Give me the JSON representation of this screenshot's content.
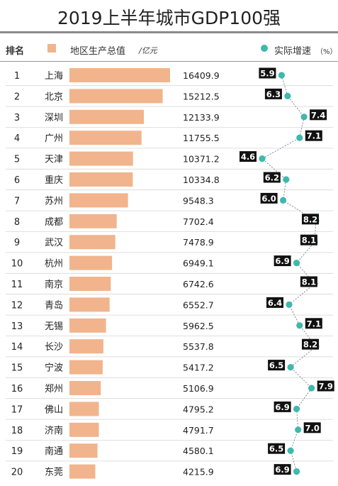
{
  "chart_data": {
    "type": "bar",
    "title": "2019上半年城市GDP100强",
    "header": {
      "rank_label": "排名",
      "gdp_label": "地区生产总值",
      "gdp_unit": "/亿元",
      "growth_label": "实际增速",
      "growth_unit": "（%）"
    },
    "colors": {
      "bar": "#f1b48c",
      "growth_dot": "#3fb8ad",
      "growth_box": "#111111"
    },
    "rows": [
      {
        "rank": "1",
        "city": "上海",
        "gdp": 16409.9,
        "gdp_label": "16409.9",
        "growth": 5.9,
        "growth_label": "5.9"
      },
      {
        "rank": "2",
        "city": "北京",
        "gdp": 15212.5,
        "gdp_label": "15212.5",
        "growth": 6.3,
        "growth_label": "6.3"
      },
      {
        "rank": "3",
        "city": "深圳",
        "gdp": 12133.9,
        "gdp_label": "12133.9",
        "growth": 7.4,
        "growth_label": "7.4"
      },
      {
        "rank": "4",
        "city": "广州",
        "gdp": 11755.5,
        "gdp_label": "11755.5",
        "growth": 7.1,
        "growth_label": "7.1"
      },
      {
        "rank": "5",
        "city": "天津",
        "gdp": 10371.2,
        "gdp_label": "10371.2",
        "growth": 4.6,
        "growth_label": "4.6"
      },
      {
        "rank": "6",
        "city": "重庆",
        "gdp": 10334.8,
        "gdp_label": "10334.8",
        "growth": 6.2,
        "growth_label": "6.2"
      },
      {
        "rank": "7",
        "city": "苏州",
        "gdp": 9548.3,
        "gdp_label": "9548.3",
        "growth": 6.0,
        "growth_label": "6.0"
      },
      {
        "rank": "8",
        "city": "成都",
        "gdp": 7702.4,
        "gdp_label": "7702.4",
        "growth": 8.2,
        "growth_label": "8.2"
      },
      {
        "rank": "9",
        "city": "武汉",
        "gdp": 7478.9,
        "gdp_label": "7478.9",
        "growth": 8.1,
        "growth_label": "8.1"
      },
      {
        "rank": "10",
        "city": "杭州",
        "gdp": 6949.1,
        "gdp_label": "6949.1",
        "growth": 6.9,
        "growth_label": "6.9"
      },
      {
        "rank": "11",
        "city": "南京",
        "gdp": 6742.6,
        "gdp_label": "6742.6",
        "growth": 8.1,
        "growth_label": "8.1"
      },
      {
        "rank": "12",
        "city": "青岛",
        "gdp": 6552.7,
        "gdp_label": "6552.7",
        "growth": 6.4,
        "growth_label": "6.4"
      },
      {
        "rank": "13",
        "city": "无锡",
        "gdp": 5962.5,
        "gdp_label": "5962.5",
        "growth": 7.1,
        "growth_label": "7.1"
      },
      {
        "rank": "14",
        "city": "长沙",
        "gdp": 5537.8,
        "gdp_label": "5537.8",
        "growth": 8.2,
        "growth_label": "8.2"
      },
      {
        "rank": "15",
        "city": "宁波",
        "gdp": 5417.2,
        "gdp_label": "5417.2",
        "growth": 6.5,
        "growth_label": "6.5"
      },
      {
        "rank": "16",
        "city": "郑州",
        "gdp": 5106.9,
        "gdp_label": "5106.9",
        "growth": 7.9,
        "growth_label": "7.9"
      },
      {
        "rank": "17",
        "city": "佛山",
        "gdp": 4795.2,
        "gdp_label": "4795.2",
        "growth": 6.9,
        "growth_label": "6.9"
      },
      {
        "rank": "18",
        "city": "济南",
        "gdp": 4791.7,
        "gdp_label": "4791.7",
        "growth": 7.0,
        "growth_label": "7.0"
      },
      {
        "rank": "19",
        "city": "南通",
        "gdp": 4580.1,
        "gdp_label": "4580.1",
        "growth": 6.5,
        "growth_label": "6.5"
      },
      {
        "rank": "20",
        "city": "东莞",
        "gdp": 4215.9,
        "gdp_label": "4215.9",
        "growth": 6.9,
        "growth_label": "6.9"
      }
    ]
  }
}
